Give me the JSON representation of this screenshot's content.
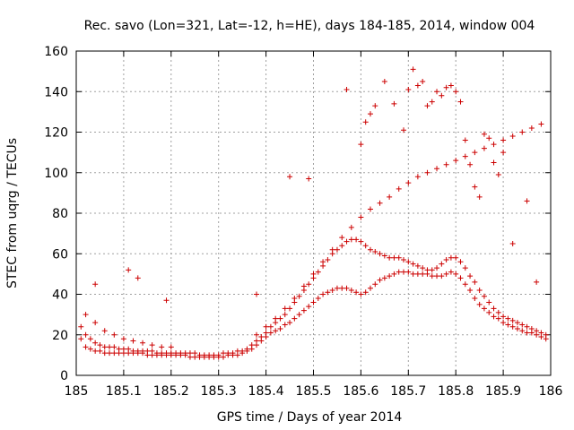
{
  "chart_data": {
    "type": "scatter",
    "title": "Rec. savo (Lon=321, Lat=-12, h=HE), days 184-185, 2014, window 004",
    "xlabel": "GPS time / Days of year 2014",
    "ylabel": "STEC from uqrg / TECUs",
    "xlim": [
      185,
      186
    ],
    "ylim": [
      0,
      160
    ],
    "xticks": [
      "185",
      "185.1",
      "185.2",
      "185.3",
      "185.4",
      "185.5",
      "185.6",
      "185.7",
      "185.8",
      "185.9",
      "186"
    ],
    "yticks": [
      "0",
      "20",
      "40",
      "60",
      "80",
      "100",
      "120",
      "140",
      "160"
    ],
    "grid": true,
    "marker": "+",
    "color": "#cc0000",
    "x": [
      185.01,
      185.02,
      185.03,
      185.04,
      185.05,
      185.06,
      185.07,
      185.08,
      185.09,
      185.1,
      185.11,
      185.12,
      185.13,
      185.14,
      185.15,
      185.16,
      185.17,
      185.18,
      185.19,
      185.2,
      185.21,
      185.22,
      185.23,
      185.24,
      185.25,
      185.26,
      185.27,
      185.28,
      185.29,
      185.3,
      185.31,
      185.32,
      185.33,
      185.34,
      185.35,
      185.36,
      185.37,
      185.38,
      185.39,
      185.4,
      185.41,
      185.42,
      185.43,
      185.44,
      185.45,
      185.46,
      185.47,
      185.48,
      185.49,
      185.5,
      185.51,
      185.52,
      185.53,
      185.54,
      185.55,
      185.56,
      185.57,
      185.58,
      185.59,
      185.6,
      185.61,
      185.62,
      185.63,
      185.64,
      185.65,
      185.66,
      185.67,
      185.68,
      185.69,
      185.7,
      185.71,
      185.72,
      185.73,
      185.74,
      185.75,
      185.76,
      185.77,
      185.78,
      185.79,
      185.8,
      185.81,
      185.82,
      185.83,
      185.84,
      185.85,
      185.86,
      185.87,
      185.88,
      185.89,
      185.9,
      185.91,
      185.92,
      185.93,
      185.94,
      185.95,
      185.96,
      185.97,
      185.98,
      185.99,
      185.01,
      185.02,
      185.03,
      185.04,
      185.05,
      185.06,
      185.07,
      185.08,
      185.09,
      185.1,
      185.11,
      185.12,
      185.13,
      185.14,
      185.15,
      185.16,
      185.17,
      185.18,
      185.19,
      185.2,
      185.21,
      185.22,
      185.23,
      185.24,
      185.25,
      185.26,
      185.27,
      185.28,
      185.29,
      185.3,
      185.31,
      185.32,
      185.33,
      185.34,
      185.35,
      185.36,
      185.37,
      185.38,
      185.39,
      185.4,
      185.41,
      185.42,
      185.43,
      185.44,
      185.45,
      185.46,
      185.47,
      185.48,
      185.49,
      185.5,
      185.51,
      185.52,
      185.53,
      185.54,
      185.55,
      185.56,
      185.57,
      185.58,
      185.59,
      185.6,
      185.61,
      185.62,
      185.63,
      185.64,
      185.65,
      185.66,
      185.67,
      185.68,
      185.69,
      185.7,
      185.71,
      185.72,
      185.73,
      185.74,
      185.75,
      185.76,
      185.77,
      185.78,
      185.79,
      185.8,
      185.81,
      185.82,
      185.83,
      185.84,
      185.85,
      185.86,
      185.87,
      185.88,
      185.89,
      185.9,
      185.91,
      185.92,
      185.93,
      185.94,
      185.95,
      185.96,
      185.97,
      185.98,
      185.99,
      185.02,
      185.04,
      185.06,
      185.08,
      185.1,
      185.12,
      185.14,
      185.16,
      185.18,
      185.2,
      185.38,
      185.4,
      185.42,
      185.44,
      185.46,
      185.48,
      185.5,
      185.52,
      185.54,
      185.56,
      185.58,
      185.6,
      185.62,
      185.64,
      185.66,
      185.68,
      185.7,
      185.72,
      185.74,
      185.76,
      185.78,
      185.8,
      185.82,
      185.84,
      185.86,
      185.88,
      185.9,
      185.92,
      185.94,
      185.96,
      185.98,
      185.04,
      185.11,
      185.13,
      185.19,
      185.38,
      185.45,
      185.49,
      185.57,
      185.6,
      185.61,
      185.62,
      185.63,
      185.65,
      185.67,
      185.69,
      185.7,
      185.71,
      185.72,
      185.73,
      185.74,
      185.75,
      185.76,
      185.77,
      185.78,
      185.79,
      185.8,
      185.81,
      185.82,
      185.83,
      185.84,
      185.85,
      185.86,
      185.87,
      185.88,
      185.89,
      185.9,
      185.92,
      185.95,
      185.97
    ],
    "y": [
      18,
      14,
      13,
      12,
      12,
      11,
      11,
      11,
      11,
      11,
      11,
      11,
      11,
      11,
      10,
      10,
      10,
      10,
      10,
      10,
      10,
      10,
      10,
      9,
      9,
      9,
      9,
      9,
      9,
      9,
      9,
      10,
      10,
      10,
      11,
      12,
      13,
      15,
      17,
      19,
      21,
      22,
      23,
      25,
      26,
      28,
      30,
      32,
      34,
      36,
      38,
      40,
      41,
      42,
      43,
      43,
      43,
      42,
      41,
      40,
      41,
      43,
      45,
      47,
      48,
      49,
      50,
      51,
      51,
      51,
      50,
      50,
      50,
      50,
      49,
      49,
      49,
      50,
      51,
      50,
      48,
      45,
      42,
      38,
      35,
      33,
      31,
      29,
      28,
      26,
      25,
      24,
      23,
      22,
      21,
      21,
      20,
      19,
      18,
      24,
      20,
      18,
      16,
      15,
      14,
      14,
      14,
      13,
      13,
      13,
      12,
      12,
      12,
      12,
      12,
      11,
      11,
      11,
      11,
      11,
      11,
      11,
      11,
      11,
      10,
      10,
      10,
      10,
      10,
      11,
      11,
      11,
      12,
      12,
      13,
      15,
      17,
      19,
      21,
      24,
      26,
      28,
      30,
      33,
      36,
      39,
      42,
      45,
      48,
      51,
      54,
      57,
      60,
      62,
      64,
      66,
      67,
      67,
      66,
      64,
      62,
      61,
      60,
      59,
      58,
      58,
      58,
      57,
      56,
      55,
      54,
      53,
      52,
      52,
      53,
      55,
      57,
      58,
      58,
      56,
      53,
      49,
      46,
      42,
      39,
      36,
      33,
      31,
      29,
      28,
      27,
      26,
      25,
      24,
      23,
      22,
      21,
      20,
      30,
      26,
      22,
      20,
      18,
      17,
      16,
      15,
      14,
      14,
      20,
      24,
      28,
      33,
      38,
      44,
      50,
      56,
      62,
      68,
      73,
      78,
      82,
      85,
      88,
      92,
      95,
      98,
      100,
      102,
      104,
      106,
      108,
      110,
      112,
      114,
      116,
      118,
      120,
      122,
      124,
      45,
      52,
      48,
      37,
      40,
      98,
      97,
      141,
      114,
      125,
      129,
      133,
      145,
      134,
      121,
      141,
      151,
      143,
      145,
      133,
      135,
      140,
      138,
      142,
      143,
      140,
      135,
      116,
      104,
      93,
      88,
      119,
      117,
      105,
      99,
      110,
      65,
      86,
      46
    ]
  }
}
